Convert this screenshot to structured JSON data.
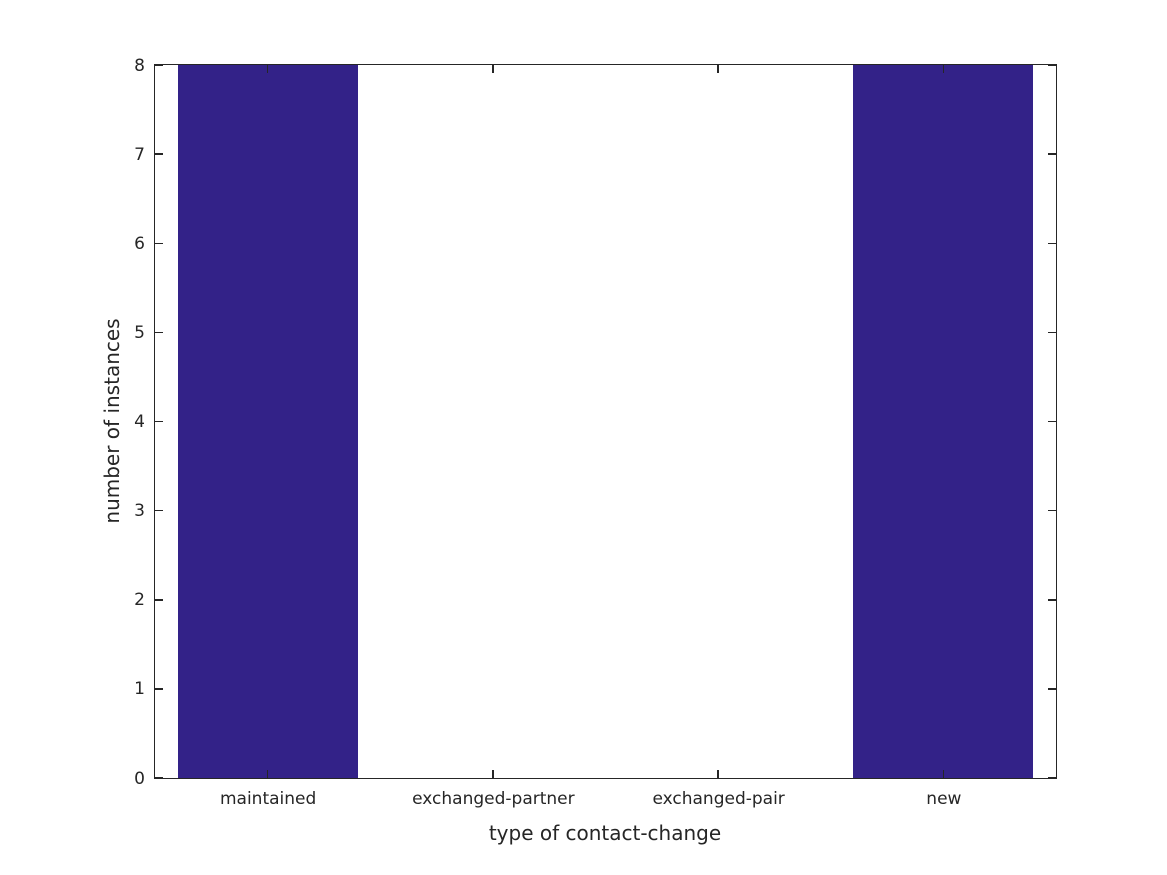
{
  "figure": {
    "background": "#ffffff",
    "bar_color": "#332288",
    "axis_color": "#262626",
    "text_color": "#262626"
  },
  "chart_data": {
    "type": "bar",
    "title": "",
    "categories": [
      "maintained",
      "exchanged-partner",
      "exchanged-pair",
      "new"
    ],
    "values": [
      8,
      0,
      0,
      8
    ],
    "xlabel": "type of contact-change",
    "ylabel": "number of instances",
    "ylim": [
      0,
      8
    ],
    "yticks": [
      0,
      1,
      2,
      3,
      4,
      5,
      6,
      7,
      8
    ],
    "bar_width_fraction": 0.8,
    "grid": false,
    "legend": null,
    "tick_direction": "in",
    "ticks_on_all_sides": true
  }
}
